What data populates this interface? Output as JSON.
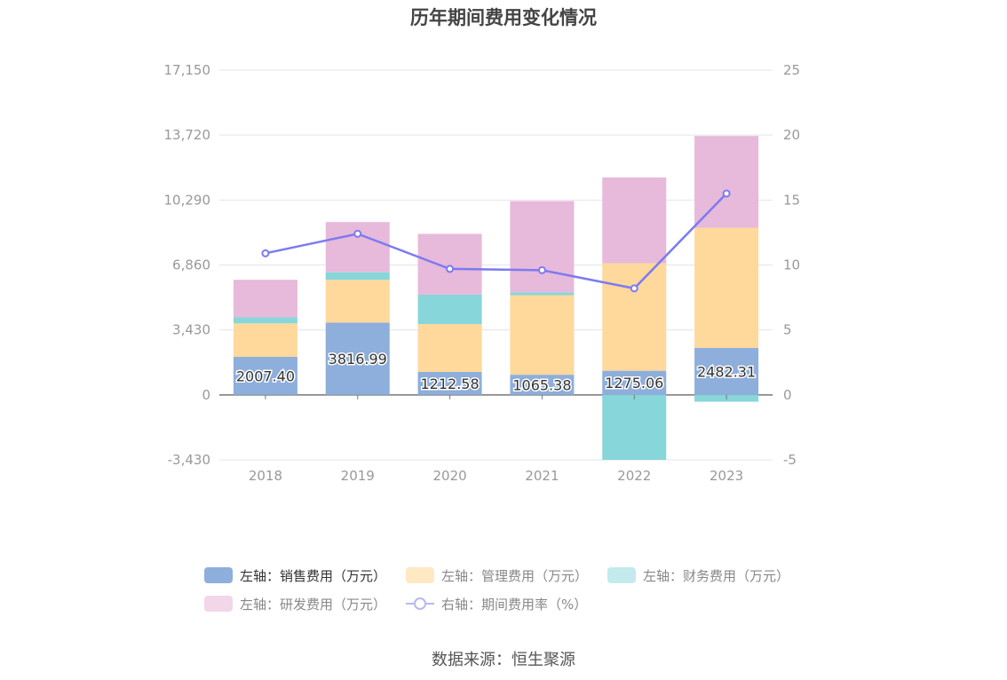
{
  "title": "历年期间费用变化情况",
  "source": "数据来源：恒生聚源",
  "colors": {
    "sales": "#8eaedb",
    "admin": "#ffd89c",
    "finance": "#87d6d9",
    "rd": "#e7b9da",
    "rate": "#7b7bf0",
    "grid": "#e3e3f0",
    "axis_text": "#999999"
  },
  "legend": [
    {
      "key": "sales",
      "label": "左轴：销售费用（万元）"
    },
    {
      "key": "admin",
      "label": "左轴：管理费用（万元）"
    },
    {
      "key": "finance",
      "label": "左轴：财务费用（万元）"
    },
    {
      "key": "rd",
      "label": "左轴：研发费用（万元）"
    },
    {
      "key": "rate",
      "label": "右轴：期间费用率（%）"
    }
  ],
  "chart_data": {
    "type": "bar",
    "stacked": true,
    "categories": [
      "2018",
      "2019",
      "2020",
      "2021",
      "2022",
      "2023"
    ],
    "left_axis": {
      "ylim": [
        -3430,
        17150
      ],
      "ticks": [
        "17,150",
        "13,720",
        "10,290",
        "6,860",
        "3,430",
        "0",
        "-3,430"
      ]
    },
    "right_axis": {
      "ylim": [
        -5,
        25
      ],
      "ticks": [
        "25",
        "20",
        "15",
        "10",
        "5",
        "0",
        "-5"
      ]
    },
    "series": [
      {
        "key": "sales",
        "name": "左轴：销售费用（万元）",
        "axis": "left",
        "values": [
          2007.4,
          3816.99,
          1212.58,
          1065.38,
          1275.06,
          2482.31
        ],
        "labels": [
          "2007.40",
          "3816.99",
          "1212.58",
          "1065.38",
          "1275.06",
          "2482.31"
        ]
      },
      {
        "key": "admin",
        "name": "左轴：管理费用（万元）",
        "axis": "left",
        "values": [
          1770,
          2260,
          2530,
          4200,
          5680,
          6340
        ]
      },
      {
        "key": "finance",
        "name": "左轴：财务费用（万元）",
        "axis": "left",
        "values": [
          320,
          400,
          1550,
          150,
          -3430,
          -360
        ]
      },
      {
        "key": "rd",
        "name": "左轴：研发费用（万元）",
        "axis": "left",
        "values": [
          1980,
          2650,
          3210,
          4820,
          4530,
          4850
        ]
      },
      {
        "key": "rate",
        "name": "右轴：期间费用率（%）",
        "axis": "right",
        "type": "line",
        "values": [
          10.9,
          12.4,
          9.7,
          9.6,
          8.2,
          15.5
        ]
      }
    ],
    "grid": true,
    "legend_position": "bottom"
  }
}
